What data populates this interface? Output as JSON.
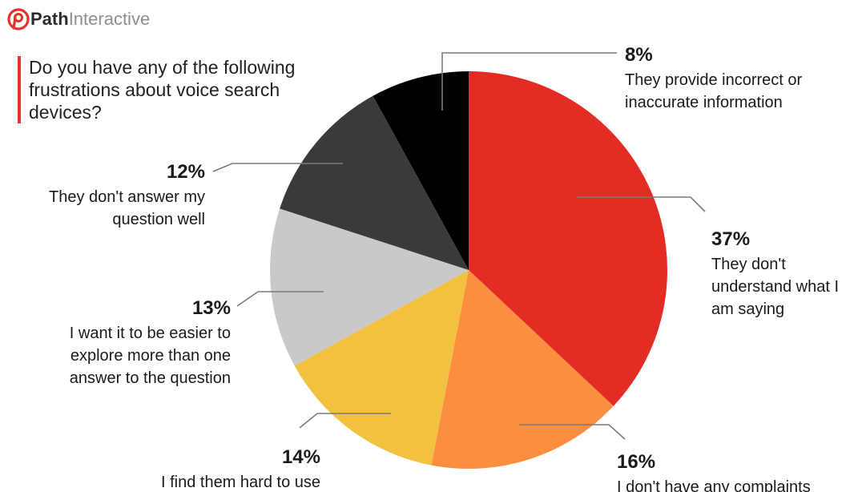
{
  "brand": {
    "name_bold": "Path",
    "name_light": "Interactive",
    "accent_color": "#e3342b",
    "logo_icon": "path-logo-icon"
  },
  "question": {
    "text": "Do you have any of the following frustrations about voice search devices?",
    "bar_color": "#e3342b"
  },
  "chart_data": {
    "type": "pie",
    "title": "Do you have any of the following frustrations about voice search devices?",
    "start_angle_deg": 0,
    "direction": "clockwise",
    "slices": [
      {
        "pct_label": "37%",
        "value": 37,
        "label_lines": [
          "They don't",
          "understand what I",
          "am saying"
        ],
        "color": "#e22c24"
      },
      {
        "pct_label": "16%",
        "value": 16,
        "label_lines": [
          "I don't have any complaints"
        ],
        "color": "#fb8e3f"
      },
      {
        "pct_label": "14%",
        "value": 14,
        "label_lines": [
          "I find them hard to use"
        ],
        "color": "#f1c13f"
      },
      {
        "pct_label": "13%",
        "value": 13,
        "label_lines": [
          "I want it to be easier to",
          "explore more than one",
          "answer to the question"
        ],
        "color": "#c9c9c9"
      },
      {
        "pct_label": "12%",
        "value": 12,
        "label_lines": [
          "They don't answer my",
          "question well"
        ],
        "color": "#3a3a3a"
      },
      {
        "pct_label": "8%",
        "value": 8,
        "label_lines": [
          "They provide incorrect or",
          "inaccurate information"
        ],
        "color": "#000000"
      }
    ]
  }
}
